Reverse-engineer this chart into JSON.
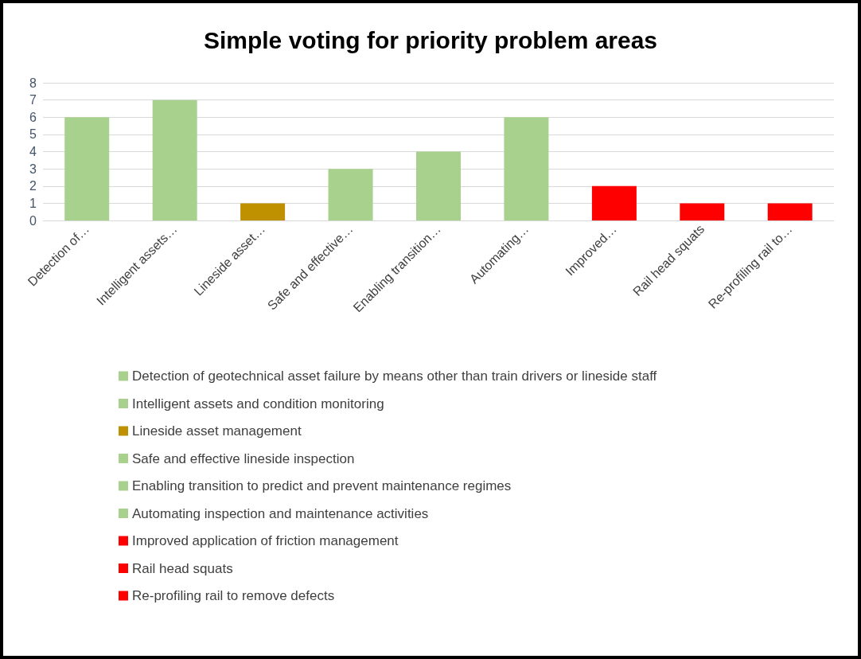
{
  "chart_data": {
    "type": "bar",
    "title": "Simple voting for priority problem areas",
    "categories": [
      "Detection of…",
      "Intelligent assets…",
      "Lineside asset…",
      "Safe and effective…",
      "Enabling transition…",
      "Automating…",
      "Improved…",
      "Rail head squats",
      "Re-profiling rail to…"
    ],
    "series": [
      {
        "name": "Detection of geotechnical asset failure by means other than train drivers or lineside staff",
        "color": "#a9d18e",
        "values": [
          6,
          null,
          null,
          null,
          null,
          null,
          null,
          null,
          null
        ]
      },
      {
        "name": "Intelligent assets and condition monitoring",
        "color": "#a9d18e",
        "values": [
          null,
          7,
          null,
          null,
          null,
          null,
          null,
          null,
          null
        ]
      },
      {
        "name": "Lineside asset management",
        "color": "#bf9000",
        "values": [
          null,
          null,
          1,
          null,
          null,
          null,
          null,
          null,
          null
        ]
      },
      {
        "name": "Safe and effective lineside inspection",
        "color": "#a9d18e",
        "values": [
          null,
          null,
          null,
          3,
          null,
          null,
          null,
          null,
          null
        ]
      },
      {
        "name": "Enabling transition to predict and prevent maintenance regimes",
        "color": "#a9d18e",
        "values": [
          null,
          null,
          null,
          null,
          4,
          null,
          null,
          null,
          null
        ]
      },
      {
        "name": "Automating inspection and maintenance activities",
        "color": "#a9d18e",
        "values": [
          null,
          null,
          null,
          null,
          null,
          6,
          null,
          null,
          null
        ]
      },
      {
        "name": "Improved application of friction management",
        "color": "#ff0000",
        "values": [
          null,
          null,
          null,
          null,
          null,
          null,
          2,
          null,
          null
        ]
      },
      {
        "name": "Rail head squats",
        "color": "#ff0000",
        "values": [
          null,
          null,
          null,
          null,
          null,
          null,
          null,
          1,
          null
        ]
      },
      {
        "name": "Re-profiling rail to remove defects",
        "color": "#ff0000",
        "values": [
          null,
          null,
          null,
          null,
          null,
          null,
          null,
          null,
          1
        ]
      }
    ],
    "ylim": [
      0,
      8
    ],
    "yticks": [
      0,
      1,
      2,
      3,
      4,
      5,
      6,
      7,
      8
    ],
    "grid": "y",
    "legend": "bottom"
  }
}
